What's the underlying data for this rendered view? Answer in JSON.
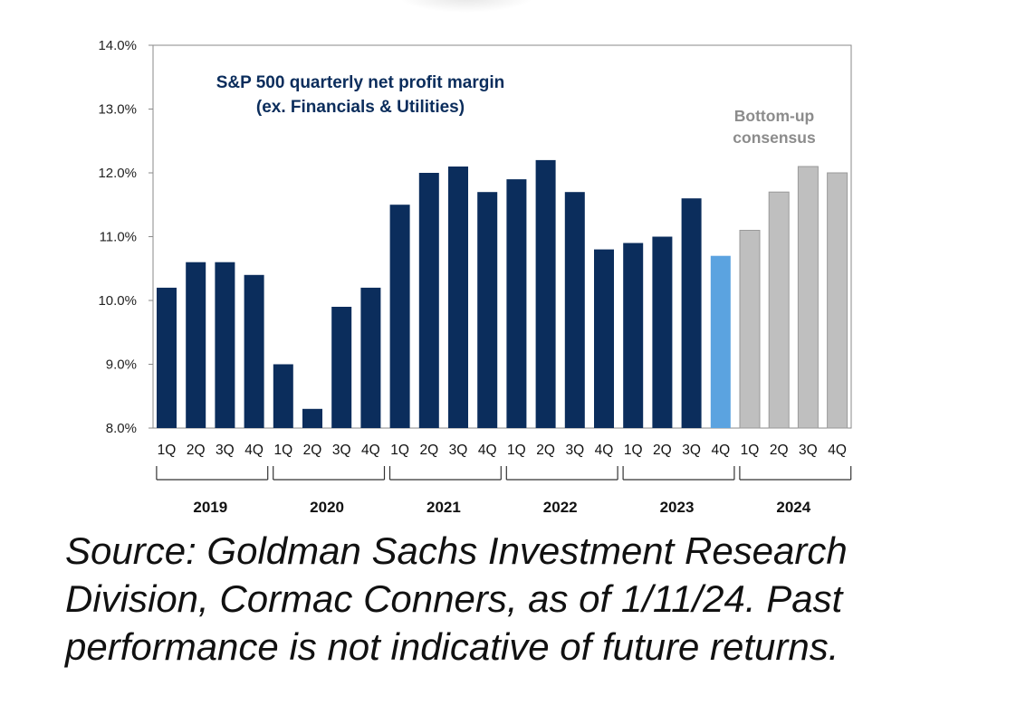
{
  "chart_data": {
    "type": "bar",
    "title_lines": [
      "S&P 500 quarterly net profit margin",
      "(ex. Financials & Utilities)"
    ],
    "annotation_lines": [
      "Bottom-up",
      "consensus"
    ],
    "y_ticks": [
      "14.0%",
      "13.0%",
      "12.0%",
      "11.0%",
      "10.0%",
      "9.0%",
      "8.0%"
    ],
    "y_tick_values": [
      14,
      13,
      12,
      11,
      10,
      9,
      8
    ],
    "ylim": [
      8,
      14
    ],
    "years": [
      "2019",
      "2020",
      "2021",
      "2022",
      "2023",
      "2024"
    ],
    "quarter_labels": [
      "1Q",
      "2Q",
      "3Q",
      "4Q"
    ],
    "categories": [
      "1Q 2019",
      "2Q 2019",
      "3Q 2019",
      "4Q 2019",
      "1Q 2020",
      "2Q 2020",
      "3Q 2020",
      "4Q 2020",
      "1Q 2021",
      "2Q 2021",
      "3Q 2021",
      "4Q 2021",
      "1Q 2022",
      "2Q 2022",
      "3Q 2022",
      "4Q 2022",
      "1Q 2023",
      "2Q 2023",
      "3Q 2023",
      "4Q 2023",
      "1Q 2024",
      "2Q 2024",
      "3Q 2024",
      "4Q 2024"
    ],
    "values": [
      10.2,
      10.6,
      10.6,
      10.4,
      9.0,
      8.3,
      9.9,
      10.2,
      11.5,
      12.0,
      12.1,
      11.7,
      11.9,
      12.2,
      11.7,
      10.8,
      10.9,
      11.0,
      11.6,
      10.7,
      11.1,
      11.7,
      12.1,
      12.0
    ],
    "bar_kinds": [
      "actual",
      "actual",
      "actual",
      "actual",
      "actual",
      "actual",
      "actual",
      "actual",
      "actual",
      "actual",
      "actual",
      "actual",
      "actual",
      "actual",
      "actual",
      "actual",
      "actual",
      "actual",
      "actual",
      "estimate",
      "consensus",
      "consensus",
      "consensus",
      "consensus"
    ],
    "xlabel": "",
    "ylabel": "",
    "grid": false,
    "colors": {
      "actual": "#0b2d5c",
      "estimate": "#5ba3e0",
      "consensus": "#bfbfbf",
      "title": "#0b2d5c",
      "annotation": "#8c8c8c",
      "axis": "#8a8a8a"
    }
  },
  "source_note": "Source: Goldman Sachs Investment Research Division, Cormac Conners, as of 1/11/24. Past performance is not indicative of future returns."
}
